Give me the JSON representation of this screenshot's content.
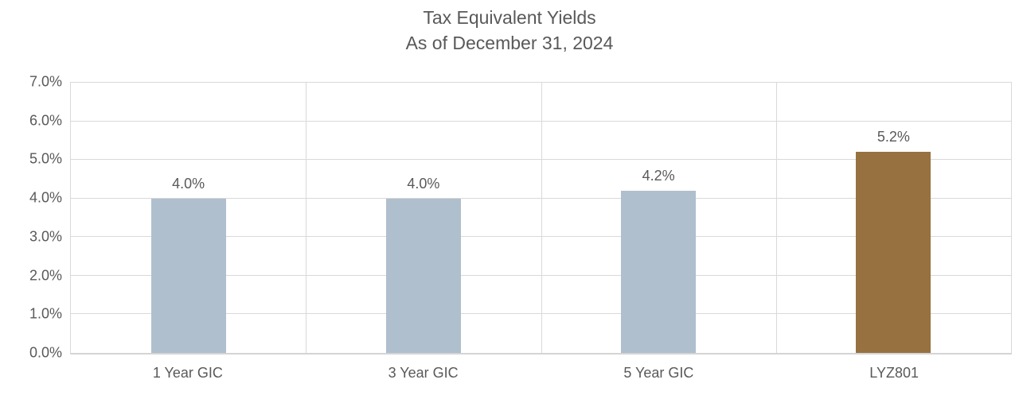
{
  "chart_data": {
    "type": "bar",
    "title": "Tax Equivalent Yields",
    "subtitle": "As of December 31, 2024",
    "categories": [
      "1 Year GIC",
      "3 Year GIC",
      "5 Year GIC",
      "LYZ801"
    ],
    "values": [
      4.0,
      4.0,
      4.2,
      5.2
    ],
    "value_labels": [
      "4.0%",
      "4.0%",
      "4.2%",
      "5.2%"
    ],
    "bar_colors": [
      "#afbfcd",
      "#afbfcd",
      "#afbfcd",
      "#97713f"
    ],
    "xlabel": "",
    "ylabel": "",
    "ylim": [
      0,
      7
    ],
    "yticks": [
      0,
      1,
      2,
      3,
      4,
      5,
      6,
      7
    ],
    "ytick_labels": [
      "0.0%",
      "1.0%",
      "2.0%",
      "3.0%",
      "4.0%",
      "5.0%",
      "6.0%",
      "7.0%"
    ],
    "grid": "horizontal major gridlines + vertical category separators",
    "legend": "none"
  },
  "colors": {
    "text": "#595959",
    "gridline": "#d9d9d9",
    "gic_bar": "#afbfcd",
    "featured_bar": "#97713f",
    "background": "#ffffff"
  }
}
